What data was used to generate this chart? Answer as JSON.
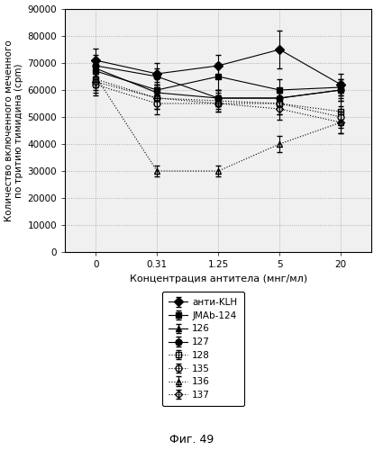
{
  "x_positions": [
    0,
    1,
    2,
    3,
    4
  ],
  "x_labels": [
    "0",
    "0.31",
    "1.25",
    "5",
    "20"
  ],
  "xlabel": "Концентрация антитела (мнг/мл)",
  "ylabel_line1": "Количество включенного меченного",
  "ylabel_line2": "по тритию тимидина (cpm)",
  "ylim": [
    0,
    90000
  ],
  "yticks": [
    0,
    10000,
    20000,
    30000,
    40000,
    50000,
    60000,
    70000,
    80000,
    90000
  ],
  "caption": "Фиг. 49",
  "bg_color": "#f0f0f0",
  "series": [
    {
      "label": "анти-KLH",
      "y": [
        71000,
        66000,
        69000,
        75000,
        62000
      ],
      "yerr": [
        4500,
        4000,
        4000,
        7000,
        4000
      ],
      "linestyle": "-",
      "marker": "D",
      "markersize": 5,
      "fillstyle": "full"
    },
    {
      "label": "JMAb-124",
      "y": [
        67000,
        60000,
        65000,
        60000,
        61000
      ],
      "yerr": [
        4000,
        3000,
        5000,
        4000,
        3000
      ],
      "linestyle": "-",
      "marker": "s",
      "markersize": 5,
      "fillstyle": "full"
    },
    {
      "label": "126",
      "y": [
        68000,
        59000,
        57000,
        57000,
        60000
      ],
      "yerr": [
        3000,
        3000,
        3000,
        3000,
        3000
      ],
      "linestyle": "-",
      "marker": "^",
      "markersize": 5,
      "fillstyle": "full"
    },
    {
      "label": "127",
      "y": [
        69000,
        65000,
        57000,
        57000,
        60000
      ],
      "yerr": [
        4000,
        3000,
        3000,
        3000,
        4000
      ],
      "linestyle": "-",
      "marker": "o",
      "markersize": 5,
      "fillstyle": "full"
    },
    {
      "label": "128",
      "y": [
        64000,
        57000,
        56000,
        55000,
        52000
      ],
      "yerr": [
        4000,
        4000,
        3000,
        4000,
        4000
      ],
      "linestyle": ":",
      "marker": "s",
      "markersize": 5,
      "fillstyle": "none"
    },
    {
      "label": "135",
      "y": [
        62000,
        55000,
        55000,
        55000,
        50000
      ],
      "yerr": [
        4000,
        4000,
        3000,
        4000,
        4000
      ],
      "linestyle": ":",
      "marker": "o",
      "markersize": 5,
      "fillstyle": "none"
    },
    {
      "label": "136",
      "y": [
        65000,
        30000,
        30000,
        40000,
        48000
      ],
      "yerr": [
        4000,
        2000,
        2000,
        3000,
        4000
      ],
      "linestyle": ":",
      "marker": "^",
      "markersize": 5,
      "fillstyle": "none"
    },
    {
      "label": "137",
      "y": [
        63000,
        57000,
        55000,
        53000,
        48000
      ],
      "yerr": [
        4000,
        4000,
        3000,
        4000,
        4000
      ],
      "linestyle": ":",
      "marker": "D",
      "markersize": 4,
      "fillstyle": "none"
    }
  ]
}
